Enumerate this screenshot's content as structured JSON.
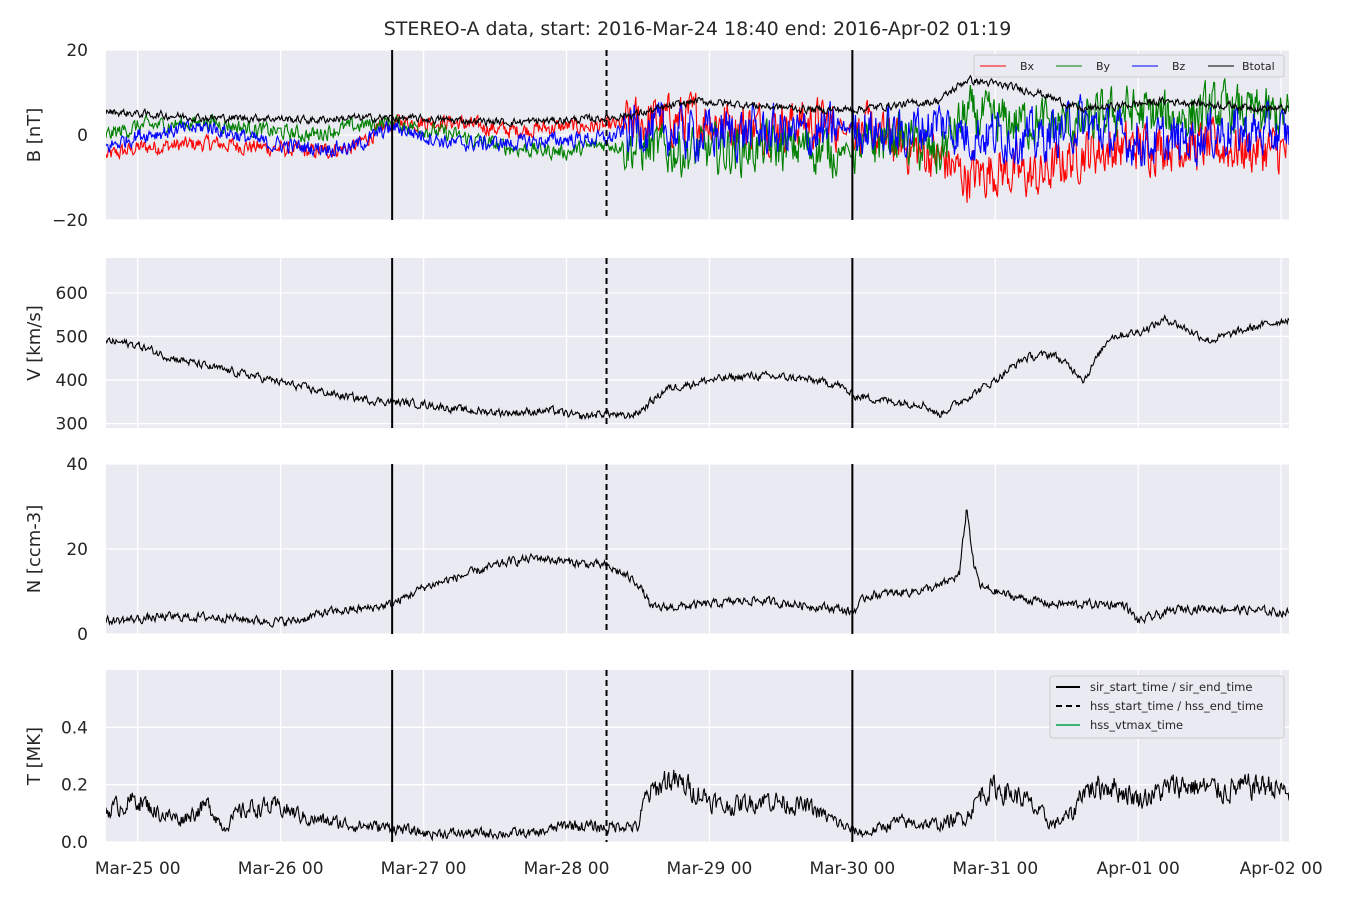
{
  "figure": {
    "title": "STEREO-A data, start: 2016-Mar-24 18:40  end: 2016-Apr-02 01:19",
    "x_ticks": [
      "Mar-25 00",
      "Mar-26 00",
      "Mar-27 00",
      "Mar-28 00",
      "Mar-29 00",
      "Mar-30 00",
      "Mar-31 00",
      "Apr-01 00",
      "Apr-02 00"
    ],
    "time_range_days": [
      -0.222,
      8.055
    ],
    "event_lines": [
      {
        "name": "sir_start",
        "t_days": 1.78,
        "style": "solid"
      },
      {
        "name": "hss_start",
        "t_days": 3.28,
        "style": "dashed"
      },
      {
        "name": "sir_end",
        "t_days": 5.0,
        "style": "solid"
      }
    ],
    "colors": {
      "bg": "#eaeaf2",
      "grid": "#ffffff",
      "bx": "#ff0000",
      "by": "#008000",
      "bz": "#0000ff",
      "btotal": "#000000",
      "vtmax": "#3cb371"
    }
  },
  "chart_data": [
    {
      "type": "line",
      "ylabel": "B [nT]",
      "ylim": [
        -20,
        20
      ],
      "yticks": [
        "−20",
        "0",
        "20"
      ],
      "ytick_values": [
        -20,
        0,
        20
      ],
      "grid": true,
      "legend": {
        "placement": "top-right",
        "entries": [
          "Bx",
          "By",
          "Bz",
          "Btotal"
        ]
      },
      "series": [
        {
          "name": "Bx",
          "color": "#ff0000",
          "t": [
            -0.22,
            0,
            0.5,
            0.9,
            1.2,
            1.5,
            1.78,
            2.2,
            2.6,
            3.0,
            3.28,
            3.5,
            3.9,
            4.3,
            4.7,
            5.0,
            5.3,
            5.6,
            5.8,
            6.0,
            6.3,
            6.6,
            6.9,
            7.2,
            7.6,
            8.05
          ],
          "v": [
            -5,
            -3,
            -2,
            -3,
            -4,
            -3,
            3,
            3,
            1,
            2,
            2,
            3,
            4,
            2,
            3,
            2,
            -2,
            -5,
            -10,
            -8,
            -10,
            -4,
            -3,
            -2,
            -3,
            -4
          ]
        },
        {
          "name": "By",
          "color": "#008000",
          "t": [
            -0.22,
            0,
            0.5,
            0.9,
            1.2,
            1.5,
            1.78,
            2.2,
            2.6,
            3.0,
            3.28,
            3.5,
            3.9,
            4.3,
            4.7,
            5.0,
            5.3,
            5.6,
            5.8,
            6.0,
            6.3,
            6.6,
            6.9,
            7.2,
            7.6,
            8.05
          ],
          "v": [
            0,
            2,
            3,
            1,
            0,
            2,
            3,
            0,
            -3,
            -4,
            -2,
            -3,
            -4,
            -3,
            -3,
            -4,
            0,
            -5,
            5,
            3,
            3,
            2,
            6,
            4,
            6,
            4
          ]
        },
        {
          "name": "Bz",
          "color": "#0000ff",
          "t": [
            -0.22,
            0,
            0.5,
            0.9,
            1.2,
            1.5,
            1.78,
            2.2,
            2.6,
            3.0,
            3.28,
            3.5,
            3.9,
            4.3,
            4.7,
            5.0,
            5.3,
            5.6,
            5.8,
            6.0,
            6.3,
            6.6,
            6.9,
            7.2,
            7.6,
            8.05
          ],
          "v": [
            -3,
            0,
            2,
            -2,
            -3,
            -3,
            2,
            -2,
            -2,
            -1,
            -1,
            2,
            0,
            1,
            0,
            2,
            0,
            3,
            0,
            0,
            -1,
            3,
            -1,
            -2,
            1,
            0
          ]
        },
        {
          "name": "Btotal",
          "color": "#000000",
          "t": [
            -0.22,
            0,
            0.5,
            0.9,
            1.2,
            1.5,
            1.78,
            2.2,
            2.6,
            3.0,
            3.28,
            3.5,
            3.9,
            4.3,
            4.7,
            5.0,
            5.3,
            5.6,
            5.8,
            6.0,
            6.3,
            6.6,
            6.9,
            7.2,
            7.6,
            8.05
          ],
          "v": [
            5.5,
            5,
            4,
            4,
            3.5,
            4,
            4,
            3.5,
            3,
            3.5,
            4,
            5,
            8,
            7,
            6,
            6,
            7,
            8,
            13,
            12,
            10,
            6,
            7,
            8,
            7,
            6
          ]
        }
      ]
    },
    {
      "type": "line",
      "ylabel": "V [km/s]",
      "ylim": [
        290,
        680
      ],
      "yticks": [
        "300",
        "400",
        "500",
        "600"
      ],
      "ytick_values": [
        300,
        400,
        500,
        600
      ],
      "grid": true,
      "series": [
        {
          "name": "V",
          "color": "#000000",
          "t": [
            -0.22,
            -0.1,
            0,
            0.2,
            0.5,
            0.8,
            1.0,
            1.2,
            1.4,
            1.6,
            1.78,
            2.0,
            2.3,
            2.6,
            2.9,
            3.1,
            3.28,
            3.4,
            3.5,
            3.7,
            4.0,
            4.3,
            4.6,
            4.9,
            5.0,
            5.3,
            5.5,
            5.6,
            5.8,
            6.0,
            6.2,
            6.4,
            6.6,
            6.62,
            6.8,
            7.0,
            7.2,
            7.5,
            7.8,
            8.05
          ],
          "v": [
            490,
            485,
            480,
            455,
            430,
            410,
            395,
            380,
            365,
            355,
            350,
            345,
            330,
            325,
            330,
            315,
            325,
            315,
            325,
            380,
            400,
            410,
            405,
            390,
            365,
            350,
            345,
            320,
            360,
            400,
            450,
            460,
            410,
            400,
            500,
            510,
            540,
            490,
            520,
            540
          ]
        }
      ]
    },
    {
      "type": "line",
      "ylabel": "N [ccm-3]",
      "ylim": [
        0,
        40
      ],
      "yticks": [
        "0",
        "20",
        "40"
      ],
      "ytick_values": [
        0,
        20,
        40
      ],
      "grid": true,
      "series": [
        {
          "name": "N",
          "color": "#000000",
          "t": [
            -0.22,
            0.2,
            0.6,
            0.9,
            1.1,
            1.3,
            1.6,
            1.78,
            2.0,
            2.3,
            2.6,
            2.8,
            3.0,
            3.28,
            3.4,
            3.5,
            3.6,
            4.0,
            4.3,
            4.6,
            4.9,
            5.0,
            5.1,
            5.4,
            5.6,
            5.75,
            5.8,
            5.85,
            5.9,
            6.1,
            6.4,
            6.6,
            6.9,
            7.0,
            7.3,
            7.6,
            8.05
          ],
          "v": [
            3,
            4,
            4,
            3,
            3,
            5,
            6,
            7,
            11,
            14,
            17,
            18,
            17,
            16,
            14,
            12,
            6,
            7,
            8,
            7,
            6,
            5,
            9,
            10,
            11,
            14,
            30,
            16,
            11,
            9,
            7,
            7,
            7,
            3,
            6,
            6,
            5
          ]
        }
      ]
    },
    {
      "type": "line",
      "ylabel": "T [MK]",
      "ylim": [
        0,
        0.6
      ],
      "yticks": [
        "0.0",
        "0.2",
        "0.4"
      ],
      "ytick_values": [
        0,
        0.2,
        0.4
      ],
      "grid": true,
      "legend": {
        "placement": "top-right",
        "entries": [
          "sir_start_time / sir_end_time",
          "hss_start_time / hss_end_time",
          "hss_vtmax_time"
        ]
      },
      "series": [
        {
          "name": "T",
          "color": "#000000",
          "t": [
            -0.22,
            0,
            0.15,
            0.3,
            0.5,
            0.6,
            0.7,
            0.8,
            1.0,
            1.2,
            1.5,
            1.78,
            2.0,
            2.4,
            2.8,
            3.0,
            3.28,
            3.4,
            3.5,
            3.55,
            3.7,
            3.9,
            4.1,
            4.4,
            4.7,
            5.0,
            5.1,
            5.3,
            5.6,
            5.8,
            5.9,
            6.0,
            6.2,
            6.4,
            6.55,
            6.6,
            6.8,
            7.0,
            7.3,
            7.6,
            7.9,
            8.05
          ],
          "v": [
            0.11,
            0.15,
            0.1,
            0.08,
            0.13,
            0.05,
            0.1,
            0.12,
            0.12,
            0.08,
            0.06,
            0.05,
            0.03,
            0.03,
            0.03,
            0.06,
            0.05,
            0.06,
            0.05,
            0.15,
            0.22,
            0.18,
            0.12,
            0.15,
            0.12,
            0.04,
            0.03,
            0.07,
            0.06,
            0.09,
            0.17,
            0.19,
            0.15,
            0.06,
            0.1,
            0.18,
            0.2,
            0.15,
            0.2,
            0.18,
            0.2,
            0.17
          ]
        }
      ]
    }
  ]
}
